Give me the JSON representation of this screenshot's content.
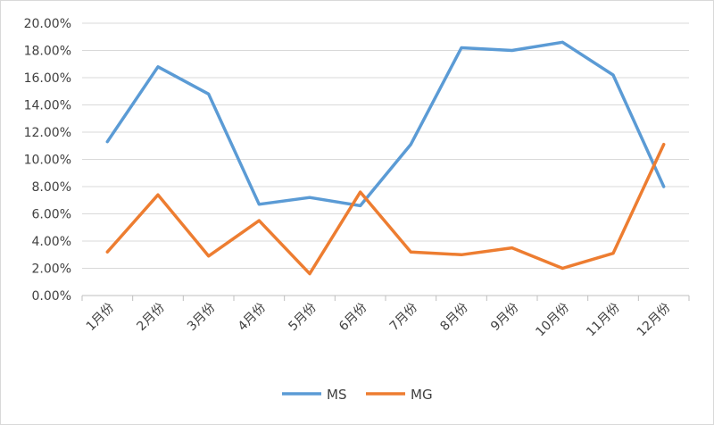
{
  "chart_data": {
    "type": "line",
    "categories": [
      "1月份",
      "2月份",
      "3月份",
      "4月份",
      "5月份",
      "6月份",
      "7月份",
      "8月份",
      "9月份",
      "10月份",
      "11月份",
      "12月份"
    ],
    "series": [
      {
        "name": "MS",
        "color": "#5B9BD5",
        "values": [
          11.3,
          16.8,
          14.8,
          6.7,
          7.2,
          6.6,
          11.1,
          18.2,
          18.0,
          18.6,
          16.2,
          8.0
        ]
      },
      {
        "name": "MG",
        "color": "#ED7D31",
        "values": [
          3.2,
          7.4,
          2.9,
          5.5,
          1.6,
          7.6,
          3.2,
          3.0,
          3.5,
          2.0,
          3.1,
          11.1
        ]
      }
    ],
    "ylim": [
      0,
      20
    ],
    "ytick_step": 2,
    "ytick_labels": [
      "0.00%",
      "2.00%",
      "4.00%",
      "6.00%",
      "8.00%",
      "10.00%",
      "12.00%",
      "14.00%",
      "16.00%",
      "18.00%",
      "20.00%"
    ],
    "grid": true,
    "legend_position": "bottom"
  }
}
